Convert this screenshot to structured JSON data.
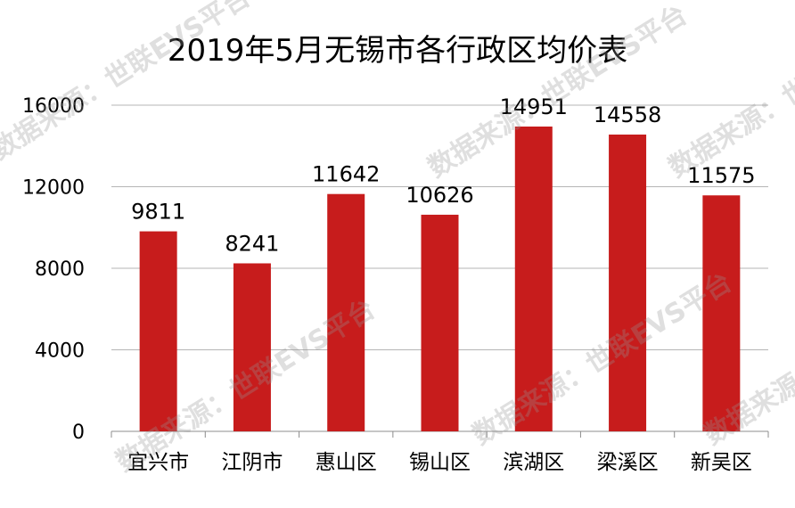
{
  "chart_data": {
    "type": "bar",
    "title": "2019年5月无锡市各行政区均价表",
    "categories": [
      "宜兴市",
      "江阴市",
      "惠山区",
      "锡山区",
      "滨湖区",
      "梁溪区",
      "新吴区"
    ],
    "values": [
      9811,
      8241,
      11642,
      10626,
      14951,
      14558,
      11575
    ],
    "data_labels": [
      "9811",
      "8241",
      "11642",
      "10626",
      "14951",
      "14558",
      "11575"
    ],
    "y_ticks": [
      0,
      4000,
      8000,
      12000,
      16000
    ],
    "y_tick_labels": [
      "0",
      "4000",
      "8000",
      "12000",
      "16000"
    ],
    "ylim": [
      0,
      16000
    ],
    "grid": true,
    "legend": "none",
    "bar_color": "#c71c1c"
  },
  "watermark": "数据来源：世联EVS平台"
}
